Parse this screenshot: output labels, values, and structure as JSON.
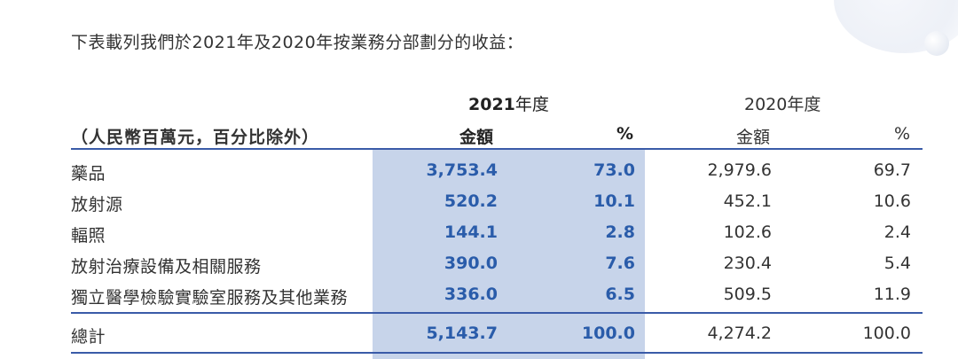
{
  "intro": "下表載列我們於2021年及2020年按業務分部劃分的收益：",
  "header": {
    "year_2021_num": "2021",
    "year_2021_suffix": "年度",
    "year_2020": "2020年度",
    "unit_label": "（人民幣百萬元，百分比除外）",
    "amount_2021": "金額",
    "pct_2021": "%",
    "amount_2020": "金額",
    "pct_2020": "%"
  },
  "rows": [
    {
      "label": "藥品",
      "amount_2021": "3,753.4",
      "pct_2021": "73.0",
      "amount_2020": "2,979.6",
      "pct_2020": "69.7"
    },
    {
      "label": "放射源",
      "amount_2021": "520.2",
      "pct_2021": "10.1",
      "amount_2020": "452.1",
      "pct_2020": "10.6"
    },
    {
      "label": "輻照",
      "amount_2021": "144.1",
      "pct_2021": "2.8",
      "amount_2020": "102.6",
      "pct_2020": "2.4"
    },
    {
      "label": "放射治療設備及相關服務",
      "amount_2021": "390.0",
      "pct_2021": "7.6",
      "amount_2020": "230.4",
      "pct_2020": "5.4"
    },
    {
      "label": "獨立醫學檢驗實驗室服務及其他業務",
      "amount_2021": "336.0",
      "pct_2021": "6.5",
      "amount_2020": "509.5",
      "pct_2020": "11.9"
    }
  ],
  "total": {
    "label": "總計",
    "amount_2021": "5,143.7",
    "pct_2021": "100.0",
    "amount_2020": "4,274.2",
    "pct_2020": "100.0"
  },
  "colors": {
    "highlight": "#c7d4ea",
    "accent_text": "#2a5caa",
    "rule": "#3a5ba8"
  }
}
